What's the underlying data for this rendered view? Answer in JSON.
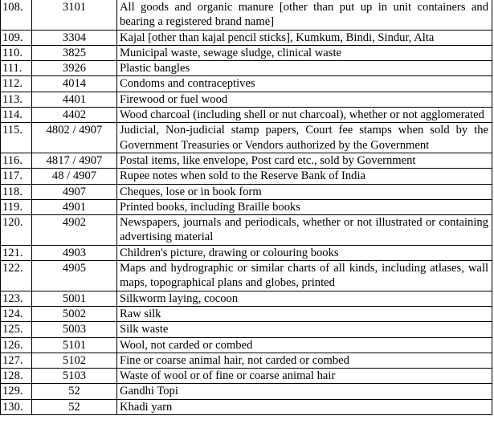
{
  "rows": [
    {
      "no": "108.",
      "hsn": "3101",
      "desc": "All goods and organic manure [other than put up in unit containers and bearing a registered brand name]"
    },
    {
      "no": "109.",
      "hsn": "3304",
      "desc": "Kajal [other than kajal pencil sticks], Kumkum, Bindi, Sindur, Alta"
    },
    {
      "no": "110.",
      "hsn": "3825",
      "desc": "Municipal waste, sewage sludge, clinical waste"
    },
    {
      "no": "111.",
      "hsn": "3926",
      "desc": "Plastic bangles"
    },
    {
      "no": "112.",
      "hsn": "4014",
      "desc": "Condoms and contraceptives"
    },
    {
      "no": "113.",
      "hsn": "4401",
      "desc": "Firewood or fuel wood"
    },
    {
      "no": "114.",
      "hsn": "4402",
      "desc": "Wood charcoal (including shell or nut charcoal), whether or not agglomerated"
    },
    {
      "no": "115.",
      "hsn": "4802 / 4907",
      "desc": "Judicial, Non-judicial stamp papers, Court fee stamps when sold by the Government Treasuries or Vendors authorized by the Government"
    },
    {
      "no": "116.",
      "hsn": "4817 / 4907",
      "desc": "Postal items, like envelope, Post card etc., sold by Government"
    },
    {
      "no": "117.",
      "hsn": "48 / 4907",
      "desc": "Rupee notes when sold to the Reserve Bank of India"
    },
    {
      "no": "118.",
      "hsn": "4907",
      "desc": "Cheques, lose or in book form"
    },
    {
      "no": "119.",
      "hsn": "4901",
      "desc": "Printed books, including Braille books"
    },
    {
      "no": "120.",
      "hsn": "4902",
      "desc": "Newspapers, journals and periodicals, whether or not illustrated or containing advertising material"
    },
    {
      "no": "121.",
      "hsn": "4903",
      "desc": "Children's picture, drawing or colouring books"
    },
    {
      "no": "122.",
      "hsn": "4905",
      "desc": "Maps and hydrographic or similar charts of all kinds, including atlases, wall maps, topographical plans and globes, printed"
    },
    {
      "no": "123.",
      "hsn": "5001",
      "desc": "Silkworm laying, cocoon"
    },
    {
      "no": "124.",
      "hsn": "5002",
      "desc": "Raw silk"
    },
    {
      "no": "125.",
      "hsn": "5003",
      "desc": "Silk waste"
    },
    {
      "no": "126.",
      "hsn": "5101",
      "desc": "Wool, not carded or combed"
    },
    {
      "no": "127.",
      "hsn": "5102",
      "desc": "Fine or coarse animal hair, not carded or combed"
    },
    {
      "no": "128.",
      "hsn": "5103",
      "desc": "Waste of wool or of fine or coarse animal hair"
    },
    {
      "no": "129.",
      "hsn": "52",
      "desc": "Gandhi Topi"
    },
    {
      "no": "130.",
      "hsn": "52",
      "desc": "Khadi yarn"
    }
  ]
}
